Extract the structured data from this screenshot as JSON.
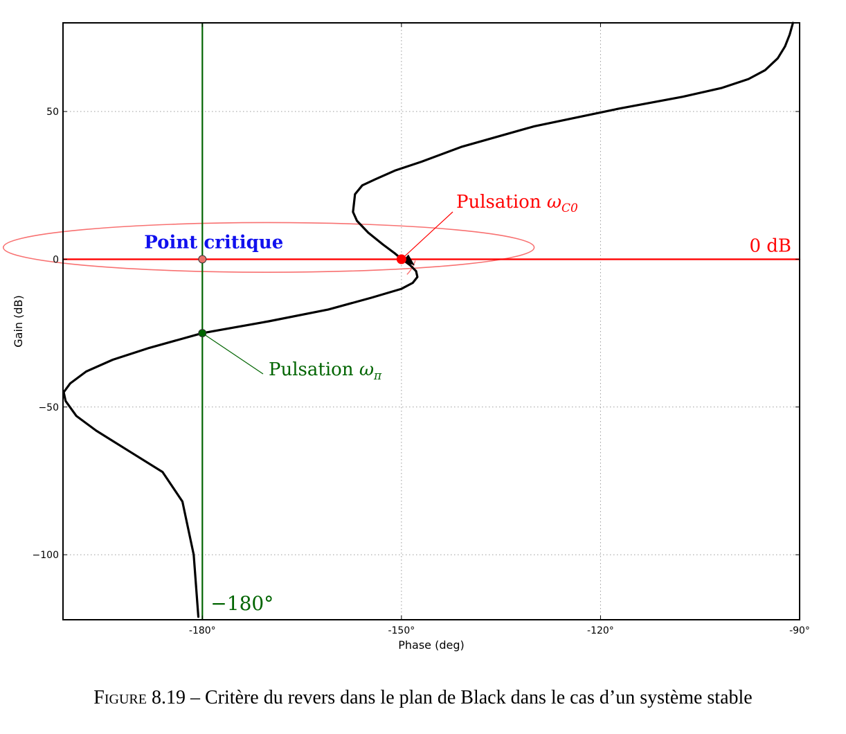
{
  "chart_data": {
    "type": "line",
    "title": "",
    "xlabel": "Phase (deg)",
    "ylabel": "Gain (dB)",
    "xlim": [
      -201,
      -90
    ],
    "ylim": [
      -122,
      80
    ],
    "x_ticks": [
      -180,
      -150,
      -120,
      -90
    ],
    "x_tick_labels": [
      "-180°",
      "-150°",
      "-120°",
      "-90°"
    ],
    "y_ticks": [
      50,
      0,
      -50,
      -100
    ],
    "y_tick_labels": [
      "50",
      "0",
      "−50",
      "−100"
    ],
    "grid": true,
    "series": [
      {
        "color": "#000000",
        "x": [
          -91.0,
          -91.5,
          -92.2,
          -93.3,
          -95.2,
          -97.7,
          -101.7,
          -107.6,
          -117.2,
          -130.0,
          -141.0,
          -147.0,
          -151.0,
          -154.0,
          -155.9,
          -157.0,
          -157.3,
          -156.7,
          -155.0,
          -152.8,
          -151.0,
          -150.2,
          -149.6,
          -148.7,
          -147.8,
          -147.6,
          -148.3,
          -150.0,
          -154.5,
          -161.0,
          -170.0,
          -180.0,
          -188.0,
          -193.5,
          -197.5,
          -199.9,
          -200.9,
          -200.6,
          -199.0,
          -196.0,
          -191.0,
          -186.0,
          -183.0,
          -181.3,
          -180.6
        ],
        "y": [
          80.0,
          76.0,
          72.0,
          68.0,
          64.0,
          61.0,
          58.0,
          55.0,
          51.0,
          45.0,
          38.0,
          33.0,
          30.0,
          27.0,
          25.0,
          22.0,
          16.0,
          13.0,
          9.0,
          5.0,
          2.0,
          0.5,
          -0.5,
          -2.0,
          -4.0,
          -6.0,
          -8.0,
          -10.0,
          -13.0,
          -17.0,
          -21.0,
          -25.0,
          -30.0,
          -34.0,
          -38.0,
          -42.0,
          -45.0,
          -48.0,
          -53.0,
          -58.0,
          -65.0,
          -72.0,
          -82.0,
          -100.0,
          -121.0
        ]
      },
      {
        "color": "#ff0000",
        "x": [
          -201,
          -90
        ],
        "y": [
          0,
          0
        ]
      },
      {
        "color": "#006400",
        "x": [
          -180,
          -180
        ],
        "y": [
          -122,
          80
        ]
      }
    ],
    "ellipse": {
      "color": "#f87171",
      "cx": -170,
      "cy": 4,
      "rx": 40,
      "ry": 8.4,
      "angle_deg": 0
    },
    "points": [
      {
        "name": "point-critique",
        "x": -180,
        "y": 0,
        "color": "#e8736a"
      },
      {
        "name": "point-wc0",
        "x": -150,
        "y": 0,
        "color": "#ff0000"
      },
      {
        "name": "point-wpi",
        "x": -180,
        "y": -25,
        "color": "#006400"
      }
    ],
    "annotations": {
      "critical_point": {
        "text": "Point critique",
        "color": "#1010ee"
      },
      "zero_db": {
        "text": "0 dB",
        "color": "#ff0000"
      },
      "w_c0": {
        "text": "Pulsation ",
        "math_var": "ω",
        "math_sub": "C0",
        "color": "#ff0000"
      },
      "w_pi": {
        "text": "Pulsation ",
        "math_var": "ω",
        "math_sub": "π",
        "color": "#006400"
      },
      "minus180": {
        "text": "−180°",
        "color": "#006400"
      }
    }
  },
  "caption": {
    "figure_word": "Figure",
    "text": " 8.19 – Critère du revers dans le plan de Black dans le cas d’un système stable"
  }
}
